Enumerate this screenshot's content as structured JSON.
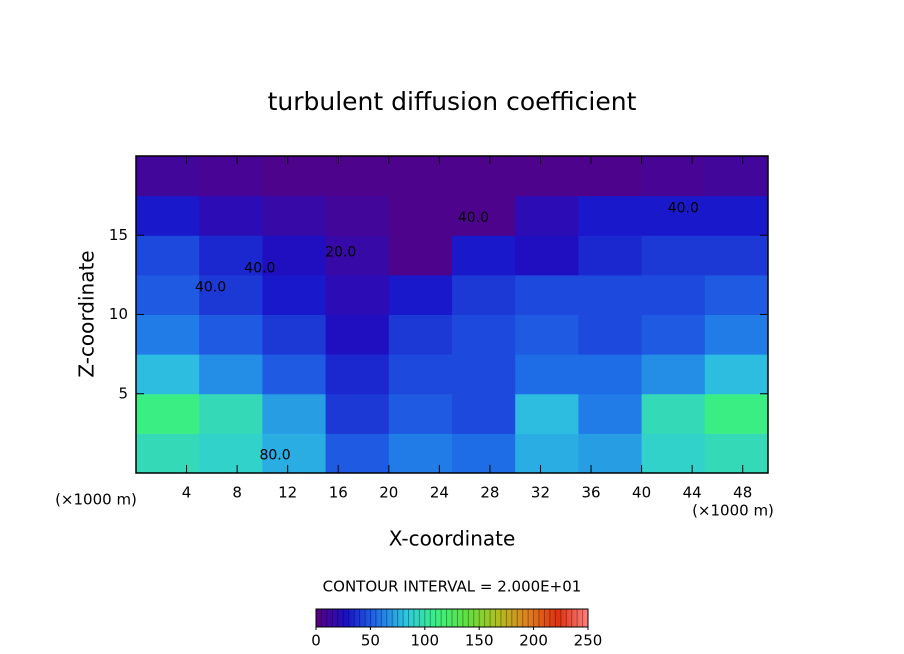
{
  "chart_data": {
    "type": "heatmap",
    "title": "turbulent diffusion coefficient",
    "x_label": "X-coordinate",
    "y_label": "Z-coordinate",
    "x_unit": "(×1000 m)",
    "xlim": [
      0,
      50
    ],
    "ylim": [
      0,
      20
    ],
    "xticks": [
      4,
      8,
      12,
      16,
      20,
      24,
      28,
      32,
      36,
      40,
      44,
      48
    ],
    "yticks": [
      5,
      10,
      15
    ],
    "x": [
      2.5,
      7.5,
      12.5,
      17.5,
      22.5,
      27.5,
      32.5,
      37.5,
      42.5,
      47.5
    ],
    "y": [
      1.25,
      3.75,
      6.25,
      8.75,
      11.25,
      13.75,
      16.25,
      18.75
    ],
    "z": [
      [
        95,
        90,
        75,
        50,
        60,
        55,
        75,
        70,
        90,
        95
      ],
      [
        110,
        95,
        70,
        40,
        50,
        45,
        80,
        60,
        95,
        110
      ],
      [
        80,
        65,
        50,
        35,
        45,
        45,
        55,
        55,
        65,
        80
      ],
      [
        60,
        50,
        40,
        25,
        40,
        45,
        50,
        45,
        50,
        60
      ],
      [
        50,
        40,
        30,
        20,
        30,
        40,
        45,
        45,
        45,
        50
      ],
      [
        45,
        35,
        25,
        15,
        5,
        30,
        25,
        35,
        40,
        40
      ],
      [
        30,
        20,
        15,
        10,
        5,
        5,
        20,
        30,
        30,
        30
      ],
      [
        10,
        8,
        5,
        5,
        5,
        5,
        5,
        5,
        8,
        10
      ]
    ],
    "contour_labels": [
      {
        "x": 5.9,
        "y": 11.7,
        "label": "40.0"
      },
      {
        "x": 9.8,
        "y": 12.9,
        "label": "40.0"
      },
      {
        "x": 16.2,
        "y": 13.9,
        "label": "20.0"
      },
      {
        "x": 11.0,
        "y": 1.1,
        "label": "80.0"
      },
      {
        "x": 26.7,
        "y": 16.1,
        "label": "40.0"
      },
      {
        "x": 43.3,
        "y": 16.7,
        "label": "40.0"
      }
    ],
    "contour_interval": "CONTOUR INTERVAL = 2.000E+01",
    "colorbar": {
      "lim": [
        0,
        250
      ],
      "ticks": [
        0,
        50,
        100,
        150,
        200,
        250
      ],
      "colors": [
        "#5a0080",
        "#1a10c8",
        "#1f6ee8",
        "#2ec8e0",
        "#3cf080",
        "#60e040",
        "#b0c020",
        "#e08020",
        "#e03010",
        "#ff8080"
      ]
    }
  }
}
